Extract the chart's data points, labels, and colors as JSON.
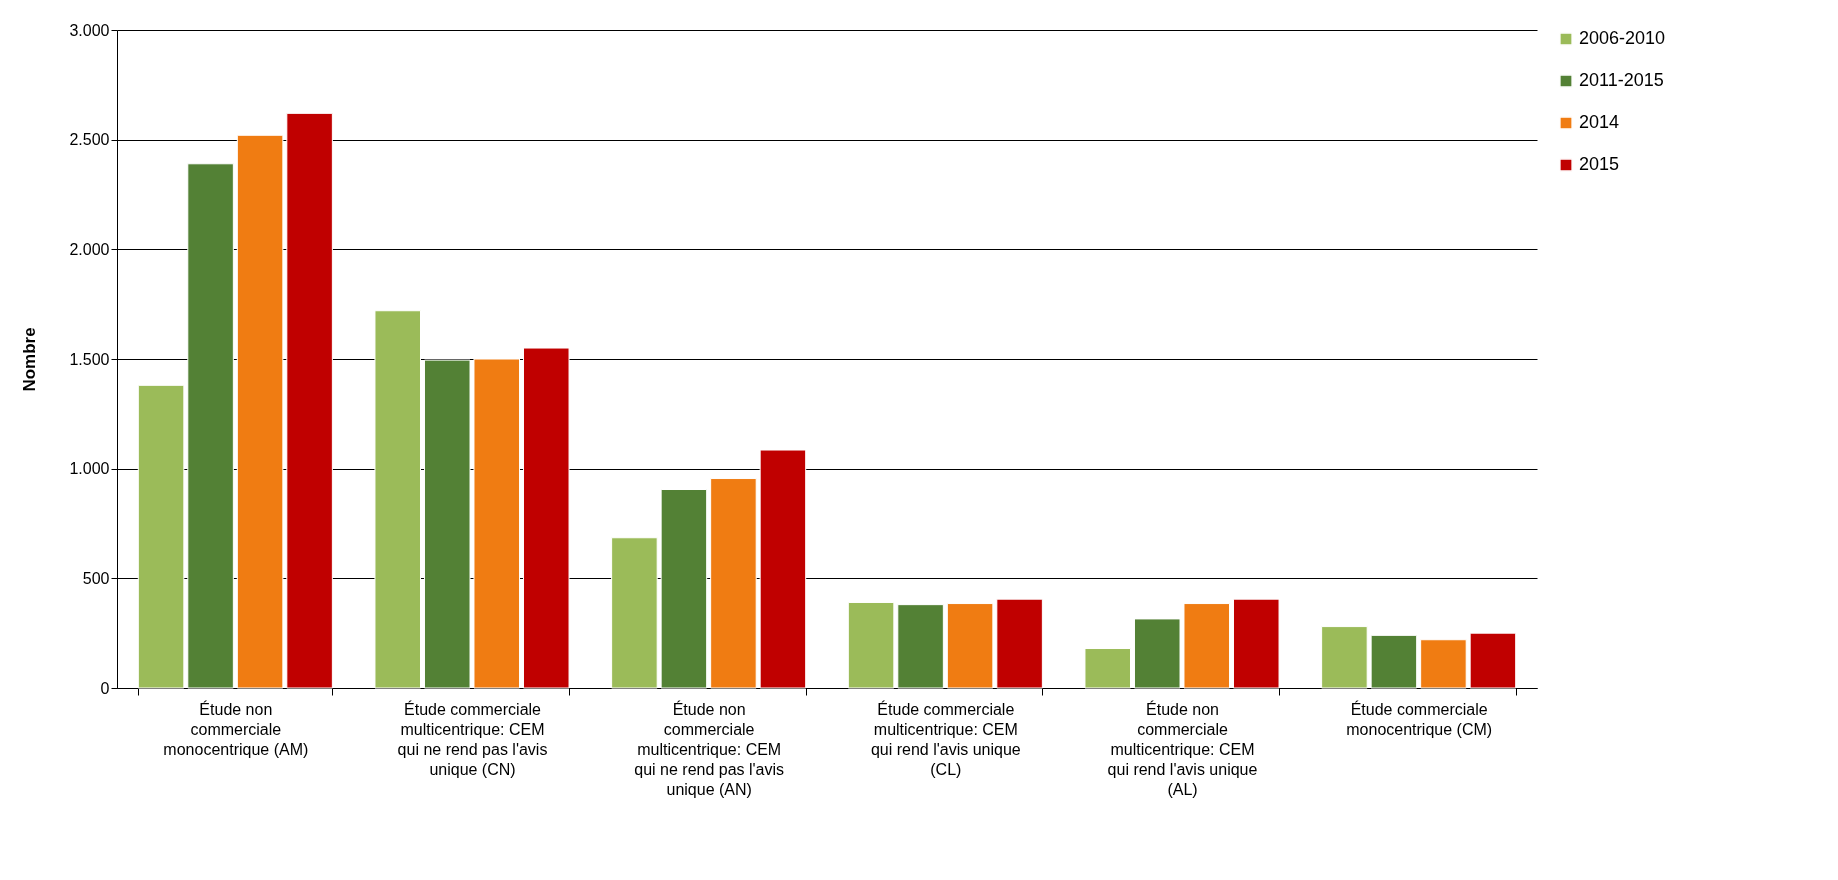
{
  "chart_data": {
    "type": "bar",
    "ylabel": "Nombre",
    "categories": [
      "Étude non commerciale monocentrique (AM)",
      "Étude commerciale multicentrique: CEM qui ne rend pas l'avis unique (CN)",
      "Étude non commerciale multicentrique: CEM qui ne rend pas l'avis unique (AN)",
      "Étude commerciale multicentrique: CEM qui rend l'avis unique (CL)",
      "Étude non commerciale multicentrique: CEM qui rend l'avis unique (AL)",
      "Étude commerciale monocentrique (CM)"
    ],
    "series": [
      {
        "name": "2006-2010",
        "color": "#9bbb59",
        "values": [
          1380,
          1720,
          685,
          390,
          180,
          280
        ]
      },
      {
        "name": "2011-2015",
        "color": "#538135",
        "values": [
          2390,
          1495,
          905,
          380,
          315,
          240
        ]
      },
      {
        "name": "2014",
        "color": "#f07c12",
        "values": [
          2520,
          1500,
          955,
          385,
          385,
          220
        ]
      },
      {
        "name": "2015",
        "color": "#c00000",
        "values": [
          2620,
          1550,
          1085,
          405,
          405,
          250
        ]
      }
    ],
    "ylim": [
      0,
      3000
    ],
    "yticks": [
      {
        "value": 0,
        "label": "0"
      },
      {
        "value": 500,
        "label": "500"
      },
      {
        "value": 1000,
        "label": "1.000"
      },
      {
        "value": 1500,
        "label": "1.500"
      },
      {
        "value": 2000,
        "label": "2.000"
      },
      {
        "value": 2500,
        "label": "2.500"
      },
      {
        "value": 3000,
        "label": "3.000"
      }
    ],
    "grid": "y",
    "legend": "right"
  }
}
